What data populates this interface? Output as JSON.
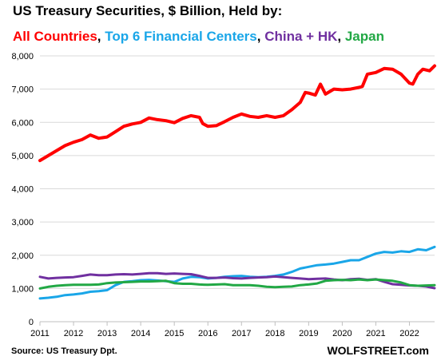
{
  "title": "US Treasury Securities,  $ Billion,  Held by:",
  "legend": [
    {
      "label": "All Countries",
      "color": "#ff0000"
    },
    {
      "label": "Top 6 Financial Centers",
      "color": "#1aa6e8"
    },
    {
      "label": "China + HK",
      "color": "#7030a0"
    },
    {
      "label": "Japan",
      "color": "#22a845"
    }
  ],
  "source": "Source: US Treasury  Dpt.",
  "brand": "WOLFSTREET.com",
  "chart_data": {
    "type": "line",
    "title": "US Treasury Securities,  $ Billion,  Held by:",
    "xlabel": "",
    "ylabel": "",
    "ylim": [
      0,
      8000
    ],
    "yticks": [
      0,
      1000,
      2000,
      3000,
      4000,
      5000,
      6000,
      7000,
      8000
    ],
    "ytick_labels": [
      "0",
      "1,000",
      "2,000",
      "3,000",
      "4,000",
      "5,000",
      "6,000",
      "7,000",
      "8,000"
    ],
    "xlim": [
      2011,
      2022.75
    ],
    "xticks": [
      2011,
      2012,
      2013,
      2014,
      2015,
      2016,
      2017,
      2018,
      2019,
      2020,
      2021,
      2022
    ],
    "xtick_labels": [
      "2011",
      "2012",
      "2013",
      "2014",
      "2015",
      "2016",
      "2017",
      "2018",
      "2019",
      "2020",
      "2021",
      "2022"
    ],
    "grid": "horizontal",
    "series": [
      {
        "name": "All Countries",
        "color": "#ff0000",
        "points": [
          [
            2011.0,
            4850
          ],
          [
            2011.25,
            5000
          ],
          [
            2011.5,
            5150
          ],
          [
            2011.75,
            5300
          ],
          [
            2012.0,
            5400
          ],
          [
            2012.25,
            5480
          ],
          [
            2012.5,
            5620
          ],
          [
            2012.75,
            5520
          ],
          [
            2013.0,
            5560
          ],
          [
            2013.25,
            5720
          ],
          [
            2013.5,
            5880
          ],
          [
            2013.75,
            5950
          ],
          [
            2014.0,
            6000
          ],
          [
            2014.25,
            6130
          ],
          [
            2014.5,
            6080
          ],
          [
            2014.75,
            6050
          ],
          [
            2015.0,
            5990
          ],
          [
            2015.25,
            6120
          ],
          [
            2015.5,
            6200
          ],
          [
            2015.75,
            6150
          ],
          [
            2015.85,
            5960
          ],
          [
            2016.0,
            5880
          ],
          [
            2016.25,
            5900
          ],
          [
            2016.5,
            6020
          ],
          [
            2016.75,
            6150
          ],
          [
            2017.0,
            6250
          ],
          [
            2017.25,
            6180
          ],
          [
            2017.5,
            6150
          ],
          [
            2017.75,
            6200
          ],
          [
            2018.0,
            6150
          ],
          [
            2018.25,
            6200
          ],
          [
            2018.5,
            6380
          ],
          [
            2018.75,
            6600
          ],
          [
            2018.9,
            6900
          ],
          [
            2019.0,
            6880
          ],
          [
            2019.2,
            6820
          ],
          [
            2019.35,
            7150
          ],
          [
            2019.5,
            6850
          ],
          [
            2019.75,
            7000
          ],
          [
            2020.0,
            6980
          ],
          [
            2020.25,
            7000
          ],
          [
            2020.5,
            7050
          ],
          [
            2020.6,
            7080
          ],
          [
            2020.75,
            7450
          ],
          [
            2021.0,
            7500
          ],
          [
            2021.25,
            7620
          ],
          [
            2021.5,
            7600
          ],
          [
            2021.75,
            7450
          ],
          [
            2022.0,
            7180
          ],
          [
            2022.1,
            7150
          ],
          [
            2022.25,
            7450
          ],
          [
            2022.4,
            7600
          ],
          [
            2022.6,
            7550
          ],
          [
            2022.75,
            7700
          ]
        ]
      },
      {
        "name": "Top 6 Financial Centers",
        "color": "#1aa6e8",
        "points": [
          [
            2011.0,
            700
          ],
          [
            2011.25,
            720
          ],
          [
            2011.5,
            750
          ],
          [
            2011.75,
            800
          ],
          [
            2012.0,
            820
          ],
          [
            2012.25,
            850
          ],
          [
            2012.5,
            900
          ],
          [
            2012.75,
            920
          ],
          [
            2013.0,
            950
          ],
          [
            2013.25,
            1100
          ],
          [
            2013.5,
            1200
          ],
          [
            2013.75,
            1220
          ],
          [
            2014.0,
            1250
          ],
          [
            2014.25,
            1260
          ],
          [
            2014.5,
            1240
          ],
          [
            2014.75,
            1220
          ],
          [
            2015.0,
            1200
          ],
          [
            2015.25,
            1300
          ],
          [
            2015.5,
            1350
          ],
          [
            2015.75,
            1340
          ],
          [
            2016.0,
            1300
          ],
          [
            2016.25,
            1320
          ],
          [
            2016.5,
            1350
          ],
          [
            2016.75,
            1370
          ],
          [
            2017.0,
            1380
          ],
          [
            2017.25,
            1350
          ],
          [
            2017.5,
            1340
          ],
          [
            2017.75,
            1350
          ],
          [
            2018.0,
            1380
          ],
          [
            2018.25,
            1420
          ],
          [
            2018.5,
            1500
          ],
          [
            2018.75,
            1600
          ],
          [
            2019.0,
            1650
          ],
          [
            2019.25,
            1700
          ],
          [
            2019.5,
            1720
          ],
          [
            2019.75,
            1750
          ],
          [
            2020.0,
            1800
          ],
          [
            2020.25,
            1850
          ],
          [
            2020.5,
            1850
          ],
          [
            2020.75,
            1950
          ],
          [
            2021.0,
            2050
          ],
          [
            2021.25,
            2100
          ],
          [
            2021.5,
            2080
          ],
          [
            2021.75,
            2120
          ],
          [
            2022.0,
            2100
          ],
          [
            2022.25,
            2180
          ],
          [
            2022.5,
            2150
          ],
          [
            2022.75,
            2250
          ]
        ]
      },
      {
        "name": "China + HK",
        "color": "#7030a0",
        "points": [
          [
            2011.0,
            1350
          ],
          [
            2011.25,
            1300
          ],
          [
            2011.5,
            1320
          ],
          [
            2011.75,
            1330
          ],
          [
            2012.0,
            1340
          ],
          [
            2012.25,
            1380
          ],
          [
            2012.5,
            1420
          ],
          [
            2012.75,
            1400
          ],
          [
            2013.0,
            1400
          ],
          [
            2013.25,
            1420
          ],
          [
            2013.5,
            1430
          ],
          [
            2013.75,
            1420
          ],
          [
            2014.0,
            1440
          ],
          [
            2014.25,
            1460
          ],
          [
            2014.5,
            1460
          ],
          [
            2014.75,
            1440
          ],
          [
            2015.0,
            1450
          ],
          [
            2015.25,
            1440
          ],
          [
            2015.5,
            1430
          ],
          [
            2015.75,
            1380
          ],
          [
            2016.0,
            1320
          ],
          [
            2016.25,
            1320
          ],
          [
            2016.5,
            1330
          ],
          [
            2016.75,
            1310
          ],
          [
            2017.0,
            1300
          ],
          [
            2017.25,
            1320
          ],
          [
            2017.5,
            1330
          ],
          [
            2017.75,
            1340
          ],
          [
            2018.0,
            1360
          ],
          [
            2018.25,
            1340
          ],
          [
            2018.5,
            1320
          ],
          [
            2018.75,
            1300
          ],
          [
            2019.0,
            1280
          ],
          [
            2019.25,
            1290
          ],
          [
            2019.5,
            1300
          ],
          [
            2019.75,
            1270
          ],
          [
            2020.0,
            1250
          ],
          [
            2020.25,
            1280
          ],
          [
            2020.5,
            1290
          ],
          [
            2020.75,
            1260
          ],
          [
            2021.0,
            1280
          ],
          [
            2021.25,
            1200
          ],
          [
            2021.5,
            1130
          ],
          [
            2021.75,
            1110
          ],
          [
            2022.0,
            1090
          ],
          [
            2022.25,
            1080
          ],
          [
            2022.5,
            1060
          ],
          [
            2022.75,
            1010
          ]
        ]
      },
      {
        "name": "Japan",
        "color": "#22a845",
        "points": [
          [
            2011.0,
            1000
          ],
          [
            2011.25,
            1050
          ],
          [
            2011.5,
            1080
          ],
          [
            2011.75,
            1100
          ],
          [
            2012.0,
            1110
          ],
          [
            2012.25,
            1110
          ],
          [
            2012.5,
            1110
          ],
          [
            2012.75,
            1120
          ],
          [
            2013.0,
            1160
          ],
          [
            2013.25,
            1180
          ],
          [
            2013.5,
            1190
          ],
          [
            2013.75,
            1200
          ],
          [
            2014.0,
            1210
          ],
          [
            2014.25,
            1210
          ],
          [
            2014.5,
            1220
          ],
          [
            2014.75,
            1230
          ],
          [
            2015.0,
            1160
          ],
          [
            2015.25,
            1140
          ],
          [
            2015.5,
            1140
          ],
          [
            2015.75,
            1120
          ],
          [
            2016.0,
            1110
          ],
          [
            2016.25,
            1120
          ],
          [
            2016.5,
            1130
          ],
          [
            2016.75,
            1100
          ],
          [
            2017.0,
            1100
          ],
          [
            2017.25,
            1100
          ],
          [
            2017.5,
            1080
          ],
          [
            2017.75,
            1050
          ],
          [
            2018.0,
            1040
          ],
          [
            2018.25,
            1050
          ],
          [
            2018.5,
            1060
          ],
          [
            2018.75,
            1100
          ],
          [
            2019.0,
            1120
          ],
          [
            2019.25,
            1150
          ],
          [
            2019.5,
            1230
          ],
          [
            2019.75,
            1250
          ],
          [
            2020.0,
            1260
          ],
          [
            2020.25,
            1250
          ],
          [
            2020.5,
            1270
          ],
          [
            2020.75,
            1250
          ],
          [
            2021.0,
            1270
          ],
          [
            2021.25,
            1250
          ],
          [
            2021.5,
            1230
          ],
          [
            2021.75,
            1180
          ],
          [
            2022.0,
            1100
          ],
          [
            2022.25,
            1080
          ],
          [
            2022.5,
            1090
          ],
          [
            2022.75,
            1100
          ]
        ]
      }
    ]
  }
}
